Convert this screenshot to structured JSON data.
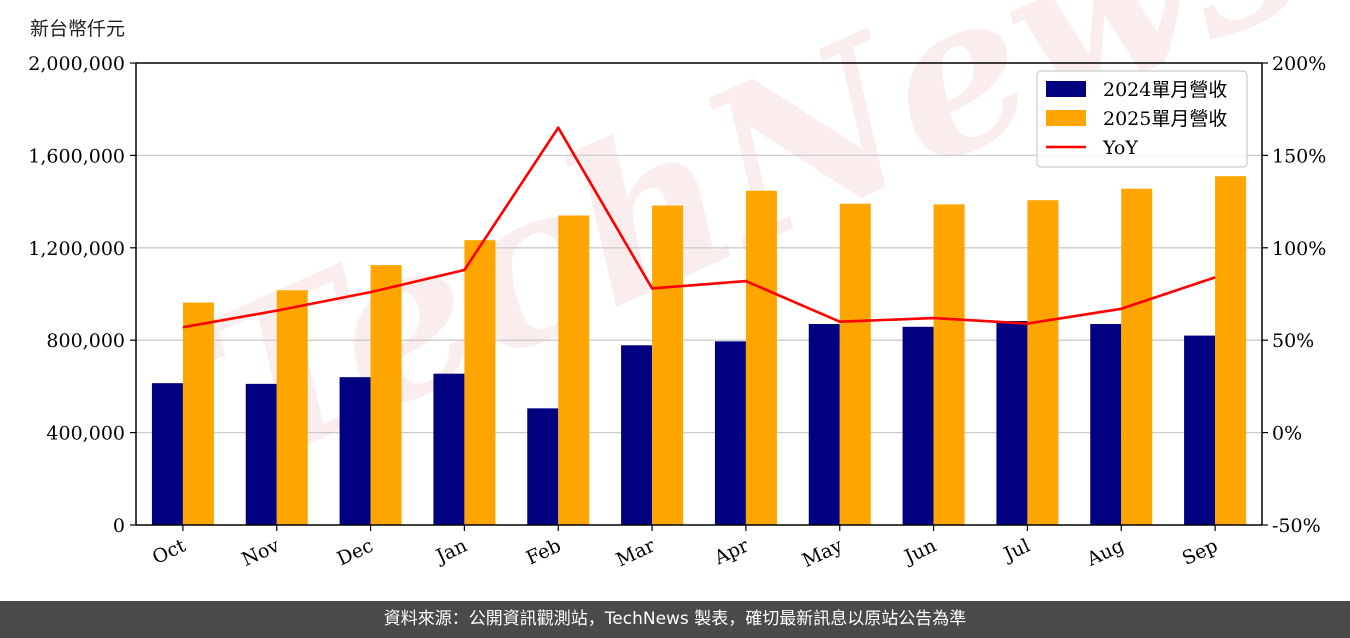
{
  "unit_label": "新台幣仟元",
  "footer_text": "資料來源：公開資訊觀測站，TechNews 製表，確切最新訊息以原站公告為準",
  "watermark": "TechNews",
  "colors": {
    "bar2024": "#000080",
    "bar2025": "#FFA500",
    "yoy": "#FF0000",
    "grid": "#cccccc"
  },
  "chart_data": {
    "type": "bar",
    "categories": [
      "Oct",
      "Nov",
      "Dec",
      "Jan",
      "Feb",
      "Mar",
      "Apr",
      "May",
      "Jun",
      "Jul",
      "Aug",
      "Sep"
    ],
    "series": [
      {
        "name": "2024單月營收",
        "type": "bar",
        "axis": "left",
        "values": [
          614000,
          611000,
          640000,
          655000,
          505000,
          778000,
          795000,
          870000,
          858000,
          883000,
          870000,
          820000
        ]
      },
      {
        "name": "2025單月營收",
        "type": "bar",
        "axis": "left",
        "values": [
          963000,
          1016000,
          1125000,
          1233000,
          1340000,
          1383000,
          1447000,
          1391000,
          1388000,
          1406000,
          1456000,
          1510000
        ]
      },
      {
        "name": "YoY",
        "type": "line",
        "axis": "right",
        "values": [
          57,
          66,
          76,
          88,
          165,
          78,
          82,
          60,
          62,
          59,
          67,
          84
        ]
      }
    ],
    "y_left": {
      "min": 0,
      "max": 2000000,
      "ticks": [
        0,
        400000,
        800000,
        1200000,
        1600000,
        2000000
      ],
      "tick_labels": [
        "0",
        "400,000",
        "800,000",
        "1,200,000",
        "1,600,000",
        "2,000,000"
      ]
    },
    "y_right": {
      "min": -50,
      "max": 200,
      "ticks": [
        -50,
        0,
        50,
        100,
        150,
        200
      ],
      "tick_labels": [
        "-50%",
        "0%",
        "50%",
        "100%",
        "150%",
        "200%"
      ]
    },
    "grid": true,
    "legend_position": "top-right",
    "legend": [
      "2024單月營收",
      "2025單月營收",
      "YoY"
    ]
  }
}
